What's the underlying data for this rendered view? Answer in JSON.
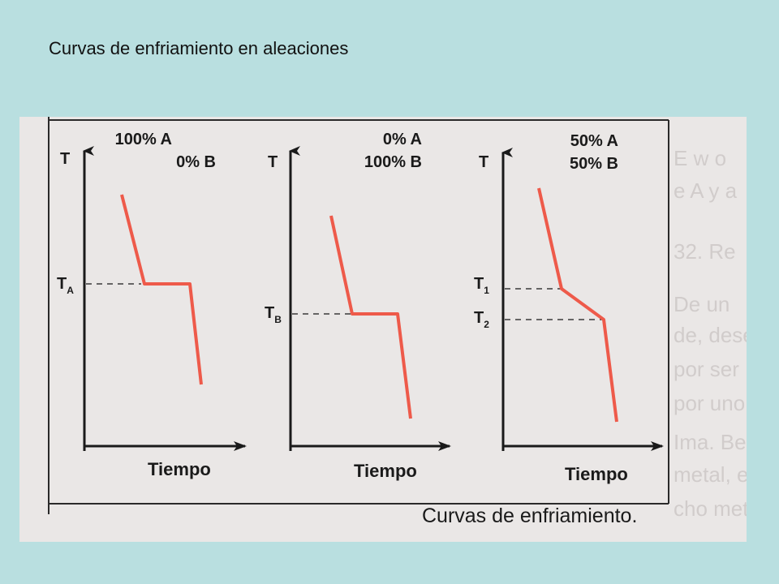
{
  "slide": {
    "title": "Curvas de enfriamiento en aleaciones"
  },
  "figure": {
    "caption": "Curvas de enfriamiento.",
    "colors": {
      "curve": "#ee5a4a",
      "axis": "#1a1a1a",
      "dashes": "#3a3a3a",
      "slide_background": "#b9dfe0",
      "figure_background": "#eae7e6"
    },
    "panels": [
      {
        "y_axis_label": "T",
        "x_axis_label": "Tiempo",
        "composition": [
          "100% A",
          "0% B"
        ],
        "temperature_labels": [
          {
            "main": "T",
            "sub": "A"
          }
        ]
      },
      {
        "y_axis_label": "T",
        "x_axis_label": "Tiempo",
        "composition": [
          "0% A",
          "100% B"
        ],
        "temperature_labels": [
          {
            "main": "T",
            "sub": "B"
          }
        ]
      },
      {
        "y_axis_label": "T",
        "x_axis_label": "Tiempo",
        "composition": [
          "50% A",
          "50% B"
        ],
        "temperature_labels": [
          {
            "main": "T",
            "sub": "1"
          },
          {
            "main": "T",
            "sub": "2"
          }
        ]
      }
    ]
  }
}
